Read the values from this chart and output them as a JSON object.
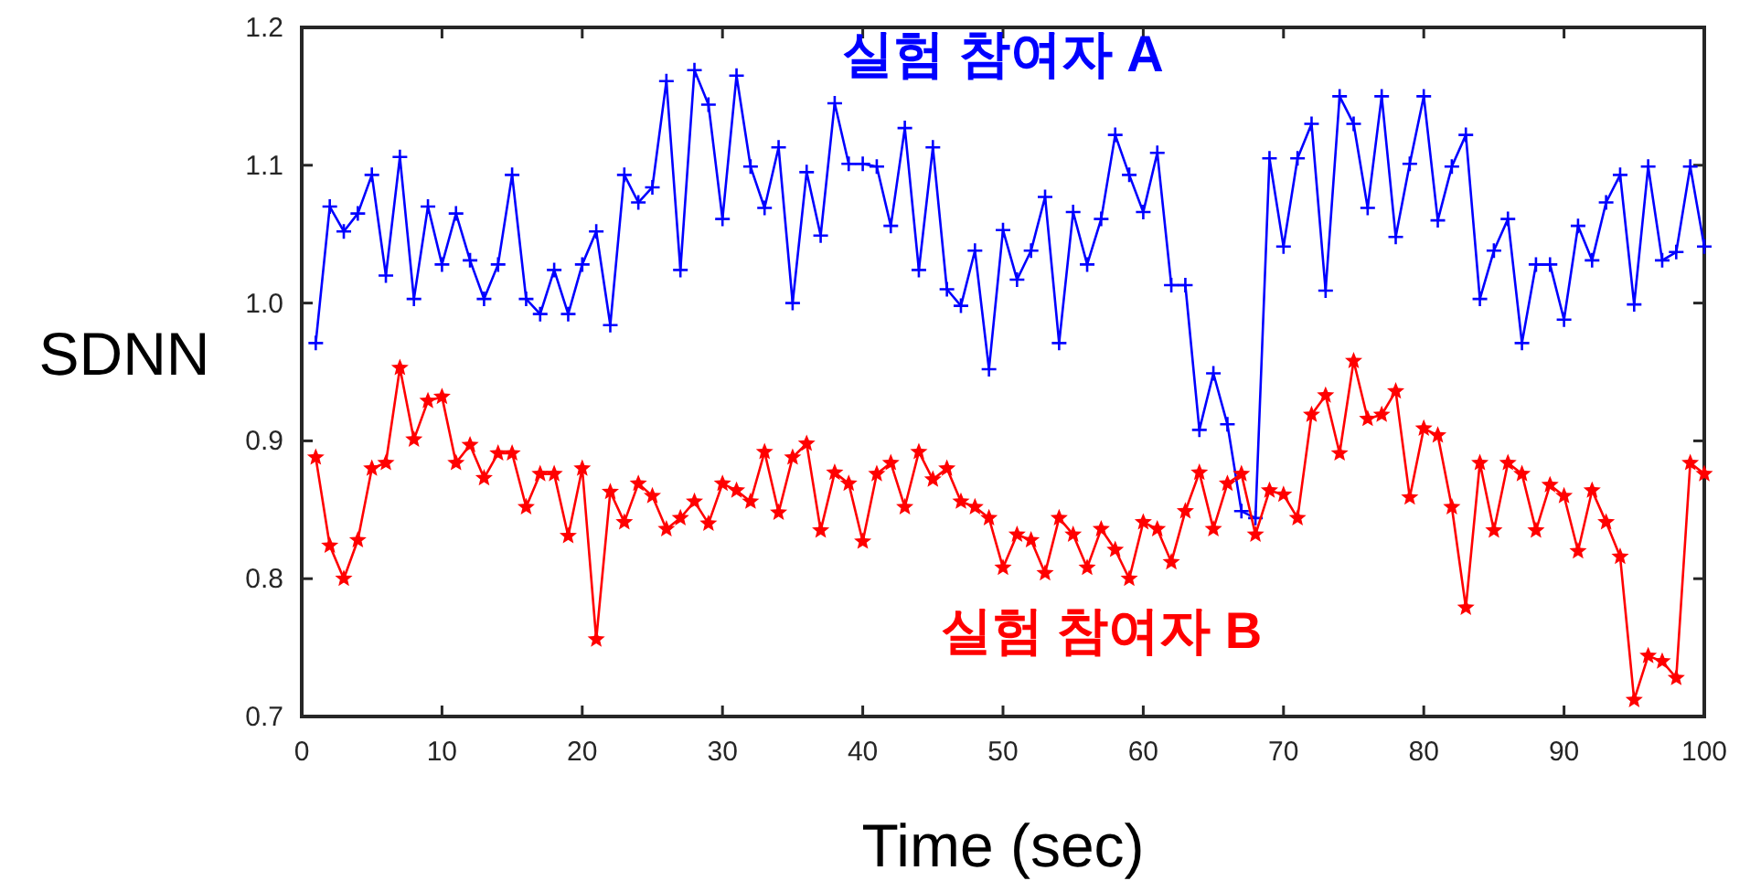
{
  "chart_data": {
    "type": "line",
    "xlabel": "Time (sec)",
    "ylabel": "SDNN",
    "x": [
      1,
      2,
      3,
      4,
      5,
      6,
      7,
      8,
      9,
      10,
      11,
      12,
      13,
      14,
      15,
      16,
      17,
      18,
      19,
      20,
      21,
      22,
      23,
      24,
      25,
      26,
      27,
      28,
      29,
      30,
      31,
      32,
      33,
      34,
      35,
      36,
      37,
      38,
      39,
      40,
      41,
      42,
      43,
      44,
      45,
      46,
      47,
      48,
      49,
      50,
      51,
      52,
      53,
      54,
      55,
      56,
      57,
      58,
      59,
      60,
      61,
      62,
      63,
      64,
      65,
      66,
      67,
      68,
      69,
      70,
      71,
      72,
      73,
      74,
      75,
      76,
      77,
      78,
      79,
      80,
      81,
      82,
      83,
      84,
      85,
      86,
      87,
      88,
      89,
      90,
      91,
      92,
      93,
      94,
      95,
      96,
      97,
      98,
      99,
      100
    ],
    "xlim": [
      0,
      100
    ],
    "xticks": [
      0,
      10,
      20,
      30,
      40,
      50,
      60,
      70,
      80,
      90,
      100
    ],
    "ylim": [
      0.7,
      1.2
    ],
    "yticks": [
      {
        "value": 0.7,
        "label": "0.7"
      },
      {
        "value": 0.8,
        "label": "0.8"
      },
      {
        "value": 0.9,
        "label": "0.9"
      },
      {
        "value": 1.0,
        "label": "1.0"
      },
      {
        "value": 1.1,
        "label": "1.1"
      },
      {
        "value": 1.2,
        "label": "1.2"
      }
    ],
    "grid": false,
    "legend": false,
    "line_style": "solid",
    "series": [
      {
        "name": "실험 참여자 A",
        "color": "#0000ff",
        "marker": "cross",
        "values": [
          0.971,
          1.07,
          1.052,
          1.065,
          1.093,
          1.02,
          1.106,
          1.003,
          1.07,
          1.028,
          1.065,
          1.031,
          1.003,
          1.028,
          1.093,
          1.003,
          0.992,
          1.024,
          0.992,
          1.028,
          1.052,
          0.984,
          1.093,
          1.073,
          1.084,
          1.161,
          1.024,
          1.169,
          1.144,
          1.061,
          1.165,
          1.099,
          1.069,
          1.113,
          1.0,
          1.095,
          1.049,
          1.145,
          1.101,
          1.101,
          1.099,
          1.056,
          1.127,
          1.024,
          1.113,
          1.01,
          0.998,
          1.038,
          0.952,
          1.053,
          1.017,
          1.038,
          1.077,
          0.971,
          1.066,
          1.028,
          1.061,
          1.122,
          1.093,
          1.066,
          1.109,
          1.013,
          1.013,
          0.908,
          0.949,
          0.912,
          0.849,
          0.844,
          1.105,
          1.041,
          1.105,
          1.13,
          1.009,
          1.15,
          1.13,
          1.069,
          1.15,
          1.048,
          1.101,
          1.15,
          1.06,
          1.099,
          1.122,
          1.003,
          1.038,
          1.061,
          0.971,
          1.028,
          1.028,
          0.988,
          1.056,
          1.031,
          1.073,
          1.093,
          0.999,
          1.099,
          1.031,
          1.037,
          1.099,
          1.041
        ]
      },
      {
        "name": "실험 참여자 B",
        "color": "#ff0000",
        "marker": "star",
        "values": [
          0.888,
          0.824,
          0.8,
          0.828,
          0.88,
          0.884,
          0.953,
          0.901,
          0.929,
          0.932,
          0.884,
          0.897,
          0.873,
          0.891,
          0.891,
          0.852,
          0.876,
          0.876,
          0.831,
          0.88,
          0.756,
          0.863,
          0.841,
          0.869,
          0.86,
          0.836,
          0.844,
          0.856,
          0.84,
          0.869,
          0.864,
          0.856,
          0.892,
          0.848,
          0.888,
          0.898,
          0.835,
          0.877,
          0.869,
          0.827,
          0.876,
          0.884,
          0.852,
          0.892,
          0.872,
          0.88,
          0.856,
          0.852,
          0.844,
          0.808,
          0.832,
          0.828,
          0.804,
          0.844,
          0.832,
          0.808,
          0.836,
          0.821,
          0.8,
          0.841,
          0.836,
          0.812,
          0.849,
          0.877,
          0.836,
          0.869,
          0.876,
          0.832,
          0.864,
          0.861,
          0.844,
          0.919,
          0.933,
          0.891,
          0.958,
          0.916,
          0.919,
          0.936,
          0.859,
          0.909,
          0.904,
          0.852,
          0.779,
          0.884,
          0.835,
          0.884,
          0.876,
          0.835,
          0.868,
          0.86,
          0.82,
          0.864,
          0.841,
          0.816,
          0.712,
          0.744,
          0.74,
          0.728,
          0.884,
          0.876
        ]
      }
    ]
  }
}
